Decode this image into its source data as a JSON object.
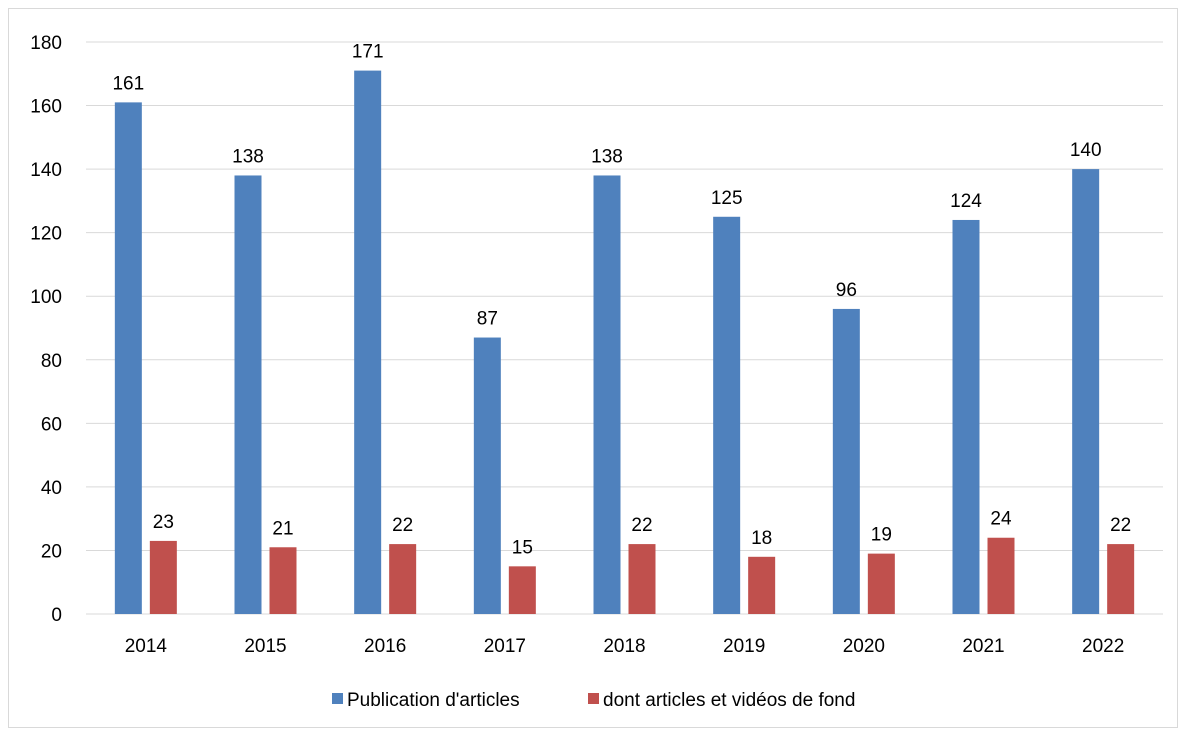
{
  "chart_data": {
    "type": "bar",
    "categories": [
      "2014",
      "2015",
      "2016",
      "2017",
      "2018",
      "2019",
      "2020",
      "2021",
      "2022"
    ],
    "series": [
      {
        "name": "Publication d'articles",
        "color": "#4F81BD",
        "values": [
          161,
          138,
          171,
          87,
          138,
          125,
          96,
          124,
          140
        ]
      },
      {
        "name": "dont articles et vidéos de fond",
        "color": "#C0504D",
        "values": [
          23,
          21,
          22,
          15,
          22,
          18,
          19,
          24,
          22
        ]
      }
    ],
    "ylim": [
      0,
      180
    ],
    "yticks": [
      "0",
      "20",
      "40",
      "60",
      "80",
      "100",
      "120",
      "140",
      "160",
      "180"
    ],
    "grid": true,
    "legend_position": "bottom",
    "data_labels": true
  }
}
